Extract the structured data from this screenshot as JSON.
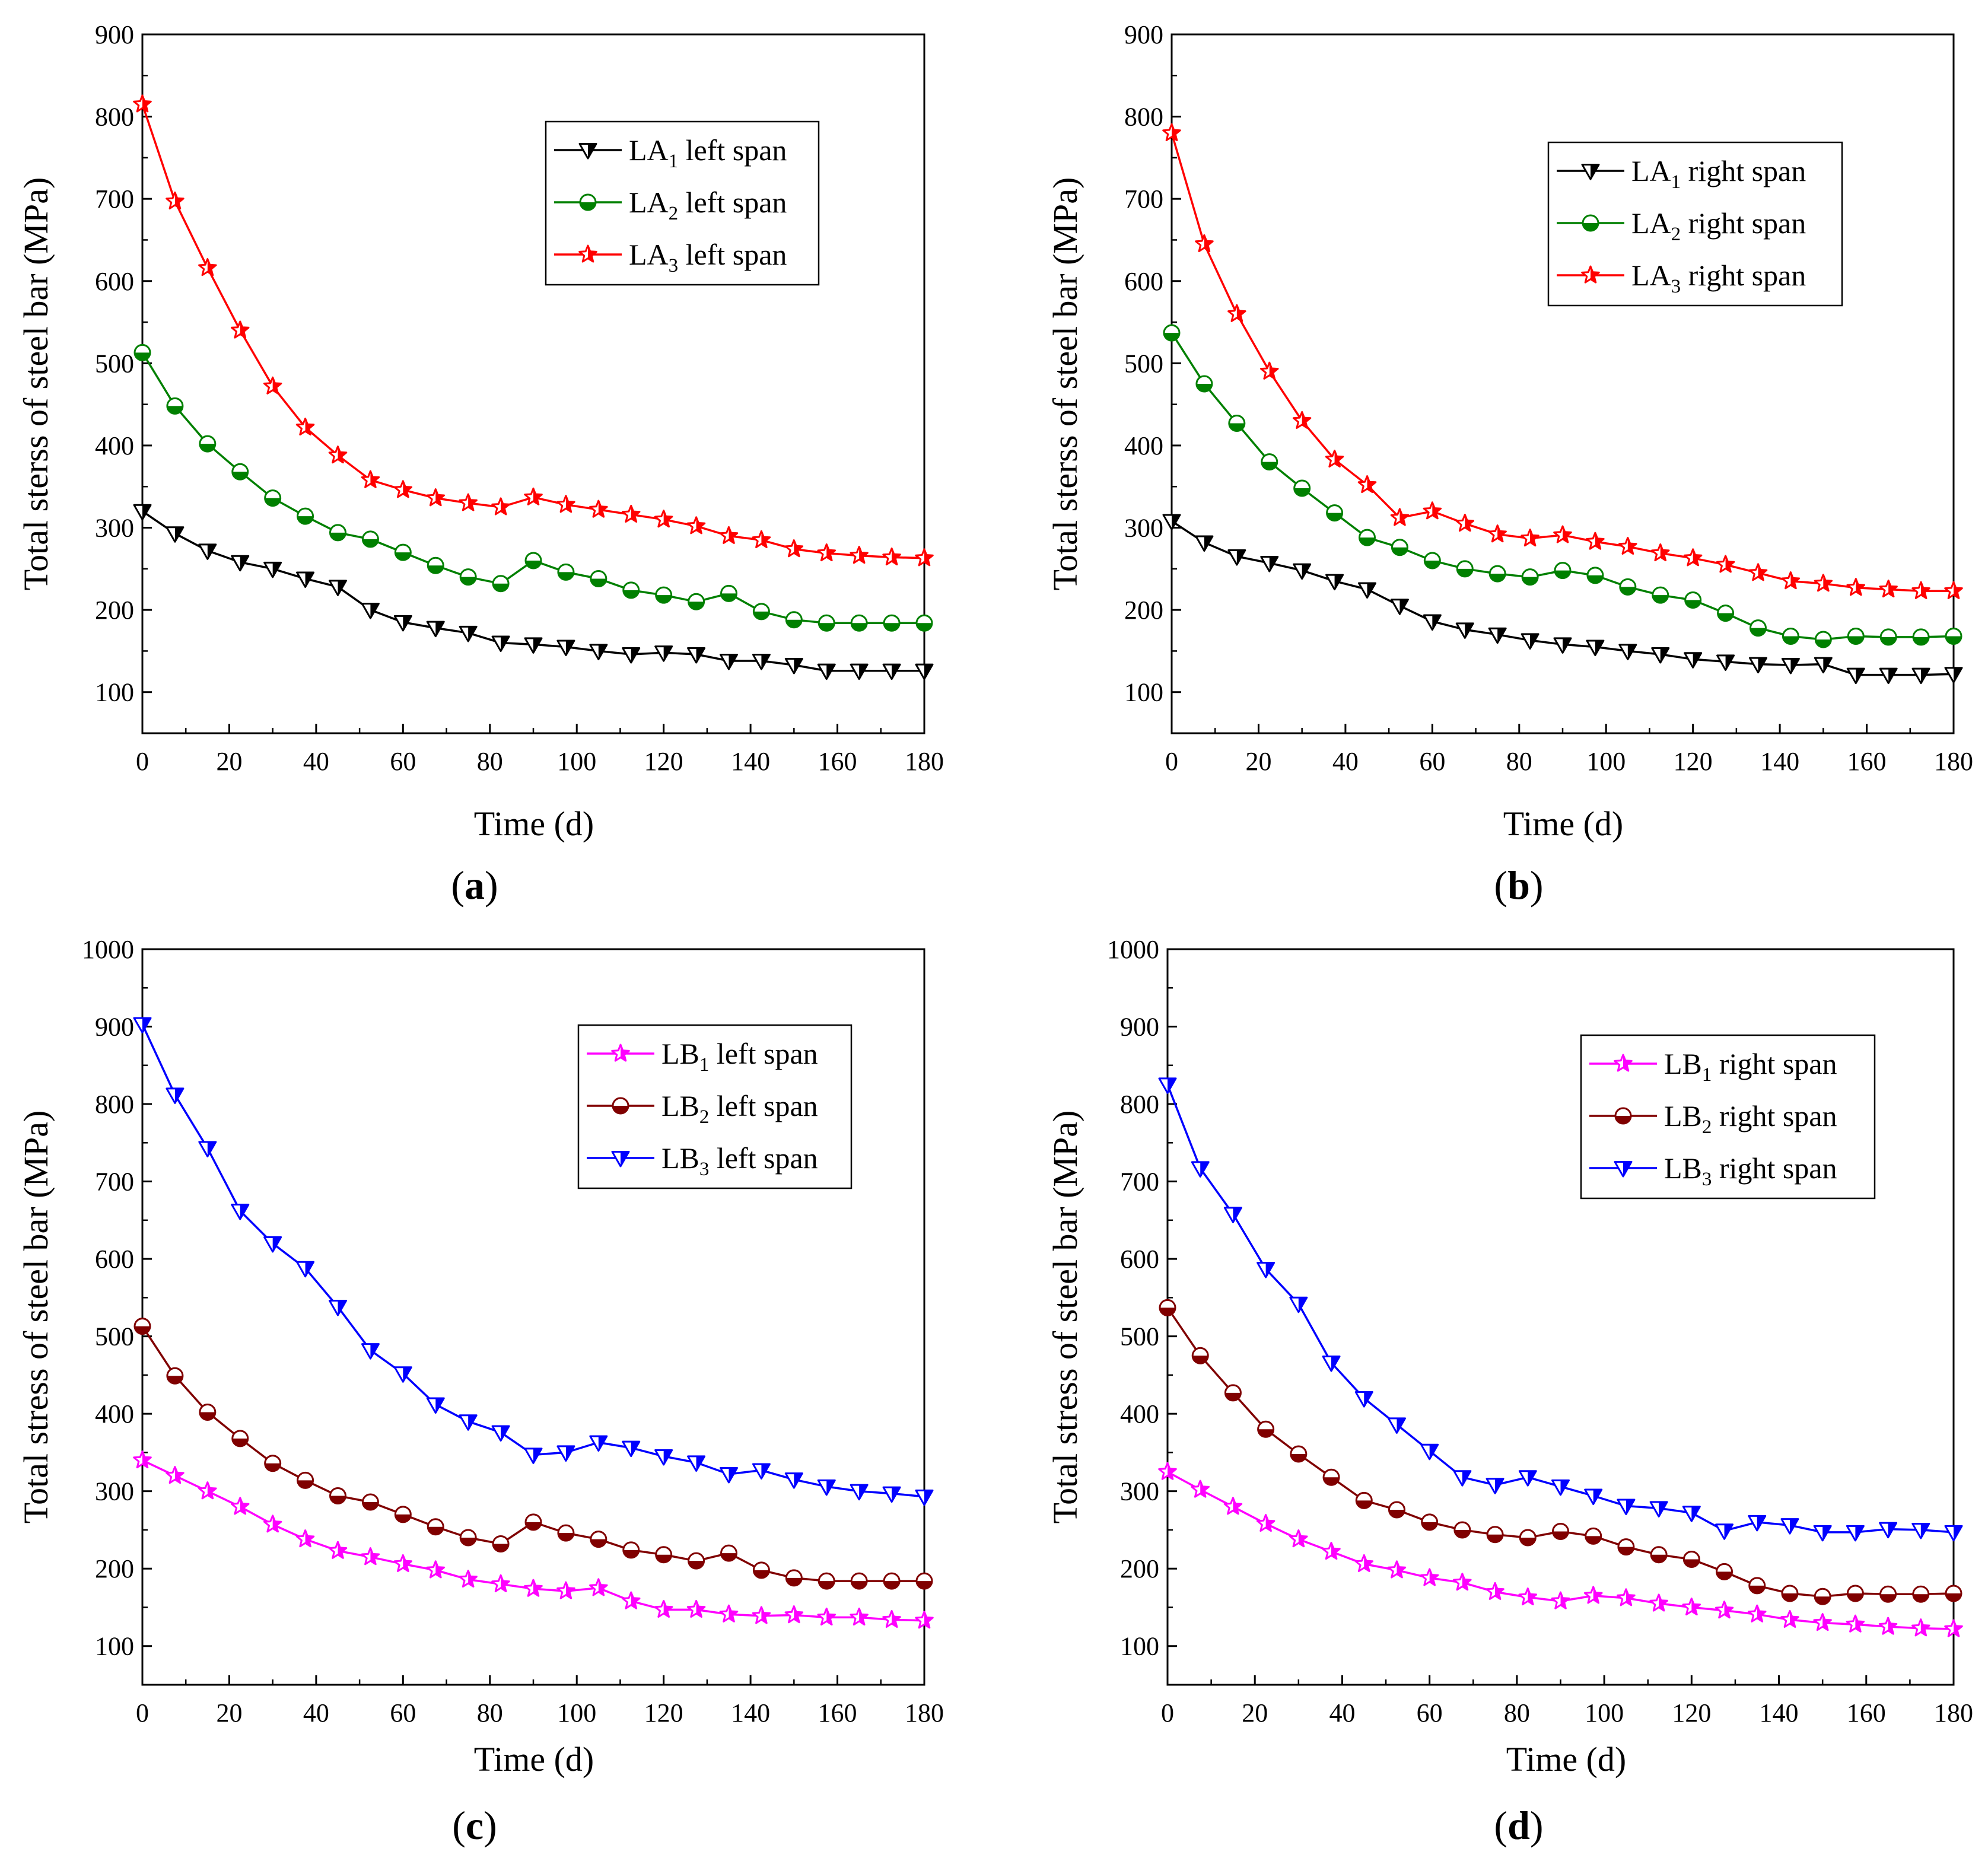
{
  "figure": {
    "x_ticks": [
      "0",
      "20",
      "40",
      "60",
      "80",
      "100",
      "120",
      "140",
      "160",
      "180"
    ],
    "panels": [
      {
        "id": "a",
        "chart_data": {
          "type": "line",
          "panel_label": "(a)",
          "panel_letter": "a",
          "xlabel": "Time (d)",
          "ylabel": "Total sterss of steel bar (MPa)",
          "xlim": [
            0,
            180
          ],
          "ylim": [
            50,
            900
          ],
          "y_ticks": [
            "100",
            "200",
            "300",
            "400",
            "500",
            "600",
            "700",
            "800",
            "900"
          ],
          "x": [
            0,
            7.5,
            15,
            22.5,
            30,
            37.5,
            45,
            52.5,
            60,
            67.5,
            75,
            82.5,
            90,
            97.5,
            105,
            112.5,
            120,
            127.5,
            135,
            142.5,
            150,
            157.5,
            165,
            172.5,
            180
          ],
          "legend_position": "top-right",
          "series": [
            {
              "name": "LA",
              "sub": "1",
              "suffix": "  left span",
              "color": "#000000",
              "marker": "triangle-down",
              "values": [
                320,
                293,
                272,
                258,
                250,
                238,
                228,
                200,
                185,
                178,
                172,
                160,
                158,
                155,
                150,
                146,
                148,
                146,
                138,
                138,
                133,
                126,
                126,
                126,
                126
              ]
            },
            {
              "name": "LA",
              "sub": "2",
              "suffix": "  left span",
              "color": "#008000",
              "marker": "circle",
              "values": [
                513,
                448,
                402,
                368,
                336,
                314,
                294,
                286,
                270,
                254,
                240,
                232,
                260,
                246,
                238,
                224,
                218,
                210,
                220,
                198,
                188,
                184,
                184,
                184,
                184
              ]
            },
            {
              "name": "LA",
              "sub": "3",
              "suffix": "  left span",
              "color": "#ff0000",
              "marker": "star",
              "values": [
                815,
                697,
                616,
                540,
                472,
                422,
                388,
                358,
                346,
                336,
                330,
                325,
                337,
                328,
                322,
                316,
                310,
                302,
                290,
                285,
                274,
                269,
                266,
                264,
                263
              ]
            }
          ]
        }
      },
      {
        "id": "b",
        "chart_data": {
          "type": "line",
          "panel_label": "(b)",
          "panel_letter": "b",
          "xlabel": "Time (d)",
          "ylabel": "Total sterss of steel bar (MPa)",
          "xlim": [
            0,
            180
          ],
          "ylim": [
            50,
            900
          ],
          "y_ticks": [
            "100",
            "200",
            "300",
            "400",
            "500",
            "600",
            "700",
            "800",
            "900"
          ],
          "x": [
            0,
            7.5,
            15,
            22.5,
            30,
            37.5,
            45,
            52.5,
            60,
            67.5,
            75,
            82.5,
            90,
            97.5,
            105,
            112.5,
            120,
            127.5,
            135,
            142.5,
            150,
            157.5,
            165,
            172.5,
            180
          ],
          "legend_position": "top-right",
          "series": [
            {
              "name": "LA",
              "sub": "1",
              "suffix": "  right span",
              "color": "#000000",
              "marker": "triangle-down",
              "values": [
                308,
                282,
                265,
                257,
                248,
                235,
                225,
                205,
                186,
                176,
                170,
                163,
                158,
                155,
                150,
                146,
                140,
                137,
                134,
                133,
                134,
                121,
                121,
                121,
                122
              ]
            },
            {
              "name": "LA",
              "sub": "2",
              "suffix": "  right span",
              "color": "#008000",
              "marker": "circle",
              "values": [
                537,
                475,
                427,
                380,
                348,
                318,
                288,
                276,
                260,
                250,
                244,
                240,
                248,
                242,
                228,
                218,
                212,
                196,
                178,
                168,
                164,
                168,
                167,
                167,
                168
              ]
            },
            {
              "name": "LA",
              "sub": "3",
              "suffix": "  right span",
              "color": "#ff0000",
              "marker": "star",
              "values": [
                780,
                645,
                560,
                490,
                430,
                383,
                352,
                312,
                320,
                305,
                292,
                287,
                291,
                283,
                277,
                269,
                263,
                255,
                245,
                235,
                232,
                227,
                225,
                223,
                223
              ]
            }
          ]
        }
      },
      {
        "id": "c",
        "chart_data": {
          "type": "line",
          "panel_label": "(c)",
          "panel_letter": "c",
          "xlabel": "Time (d)",
          "ylabel": "Total stress of steel bar (MPa)",
          "xlim": [
            0,
            180
          ],
          "ylim": [
            50,
            1000
          ],
          "y_ticks": [
            "100",
            "200",
            "300",
            "400",
            "500",
            "600",
            "700",
            "800",
            "900",
            "1000"
          ],
          "x": [
            0,
            7.5,
            15,
            22.5,
            30,
            37.5,
            45,
            52.5,
            60,
            67.5,
            75,
            82.5,
            90,
            97.5,
            105,
            112.5,
            120,
            127.5,
            135,
            142.5,
            150,
            157.5,
            165,
            172.5,
            180
          ],
          "legend_position": "top-right",
          "series": [
            {
              "name": "LB",
              "sub": "1",
              "suffix": "  left span",
              "color": "#ff00ff",
              "marker": "star",
              "values": [
                340,
                320,
                300,
                280,
                257,
                238,
                223,
                215,
                206,
                198,
                186,
                180,
                174,
                171,
                175,
                158,
                147,
                147,
                141,
                139,
                140,
                137,
                137,
                134,
                133
              ]
            },
            {
              "name": "LB",
              "sub": "2",
              "suffix": "  left span",
              "color": "#800000",
              "marker": "circle",
              "values": [
                513,
                449,
                402,
                368,
                336,
                314,
                294,
                286,
                270,
                254,
                240,
                232,
                260,
                246,
                238,
                224,
                218,
                210,
                220,
                198,
                188,
                184,
                184,
                184,
                184
              ]
            },
            {
              "name": "LB",
              "sub": "3",
              "suffix": "  left span",
              "color": "#0000ff",
              "marker": "triangle-down",
              "values": [
                903,
                812,
                743,
                662,
                620,
                588,
                538,
                482,
                452,
                412,
                390,
                376,
                347,
                350,
                363,
                356,
                345,
                337,
                322,
                327,
                315,
                306,
                300,
                297,
                293
              ]
            }
          ]
        }
      },
      {
        "id": "d",
        "chart_data": {
          "type": "line",
          "panel_label": "(d)",
          "panel_letter": "d",
          "xlabel": "Time (d)",
          "ylabel": "Total stress of steel bar (MPa)",
          "xlim": [
            0,
            180
          ],
          "ylim": [
            50,
            1000
          ],
          "y_ticks": [
            "100",
            "200",
            "300",
            "400",
            "500",
            "600",
            "700",
            "800",
            "900",
            "1000"
          ],
          "x": [
            0,
            7.5,
            15,
            22.5,
            30,
            37.5,
            45,
            52.5,
            60,
            67.5,
            75,
            82.5,
            90,
            97.5,
            105,
            112.5,
            120,
            127.5,
            135,
            142.5,
            150,
            157.5,
            165,
            172.5,
            180
          ],
          "legend_position": "top-right",
          "series": [
            {
              "name": "LB",
              "sub": "1",
              "suffix": "  right span",
              "color": "#ff00ff",
              "marker": "star",
              "values": [
                325,
                302,
                280,
                258,
                238,
                222,
                206,
                198,
                188,
                182,
                170,
                163,
                158,
                165,
                162,
                155,
                150,
                146,
                141,
                134,
                130,
                128,
                125,
                123,
                122
              ]
            },
            {
              "name": "LB",
              "sub": "2",
              "suffix": "  right span",
              "color": "#800000",
              "marker": "circle",
              "values": [
                537,
                475,
                427,
                380,
                348,
                318,
                288,
                276,
                260,
                250,
                244,
                240,
                248,
                242,
                228,
                218,
                212,
                196,
                178,
                168,
                164,
                168,
                167,
                167,
                168
              ]
            },
            {
              "name": "LB",
              "sub": "3",
              "suffix": "  right span",
              "color": "#0000ff",
              "marker": "triangle-down",
              "values": [
                825,
                717,
                658,
                587,
                542,
                466,
                420,
                386,
                352,
                318,
                308,
                318,
                306,
                294,
                281,
                278,
                272,
                249,
                260,
                256,
                247,
                247,
                251,
                250,
                247
              ]
            }
          ]
        }
      }
    ]
  }
}
